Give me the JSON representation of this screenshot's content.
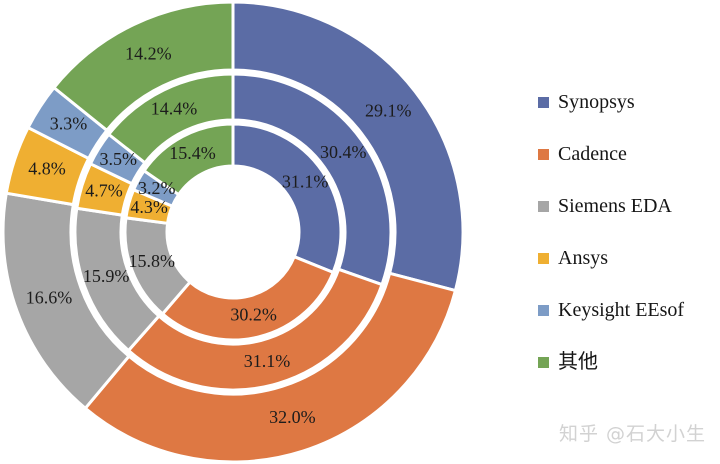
{
  "chart_data": {
    "type": "pie",
    "subtype": "concentric-donut-3-rings",
    "title": "",
    "categories": [
      "Synopsys",
      "Cadence",
      "Siemens EDA",
      "Ansys",
      "Keysight EEsof",
      "其他"
    ],
    "colors": [
      "#5B6CA5",
      "#DE7843",
      "#A6A6A6",
      "#EFAF32",
      "#7D9CC6",
      "#74A455"
    ],
    "rings": [
      {
        "name": "outer",
        "values": [
          29.1,
          32.0,
          16.6,
          4.8,
          3.3,
          14.2
        ]
      },
      {
        "name": "middle",
        "values": [
          30.4,
          31.1,
          15.9,
          4.7,
          3.5,
          14.4
        ]
      },
      {
        "name": "inner",
        "values": [
          31.1,
          30.2,
          15.8,
          4.3,
          3.2,
          15.4
        ]
      }
    ],
    "label_format": "{value}%",
    "label_decimals": 1,
    "start_angle_deg": 0,
    "direction": "clockwise",
    "legend_position": "right",
    "grid": false
  },
  "legend": {
    "items": [
      {
        "label": "Synopsys",
        "color": "#5B6CA5"
      },
      {
        "label": "Cadence",
        "color": "#DE7843"
      },
      {
        "label": "Siemens EDA",
        "color": "#A6A6A6"
      },
      {
        "label": "Ansys",
        "color": "#EFAF32"
      },
      {
        "label": "Keysight EEsof",
        "color": "#7D9CC6"
      },
      {
        "label": "其他",
        "color": "#74A455"
      }
    ]
  },
  "watermark": {
    "text": "知乎 @石大小生"
  }
}
